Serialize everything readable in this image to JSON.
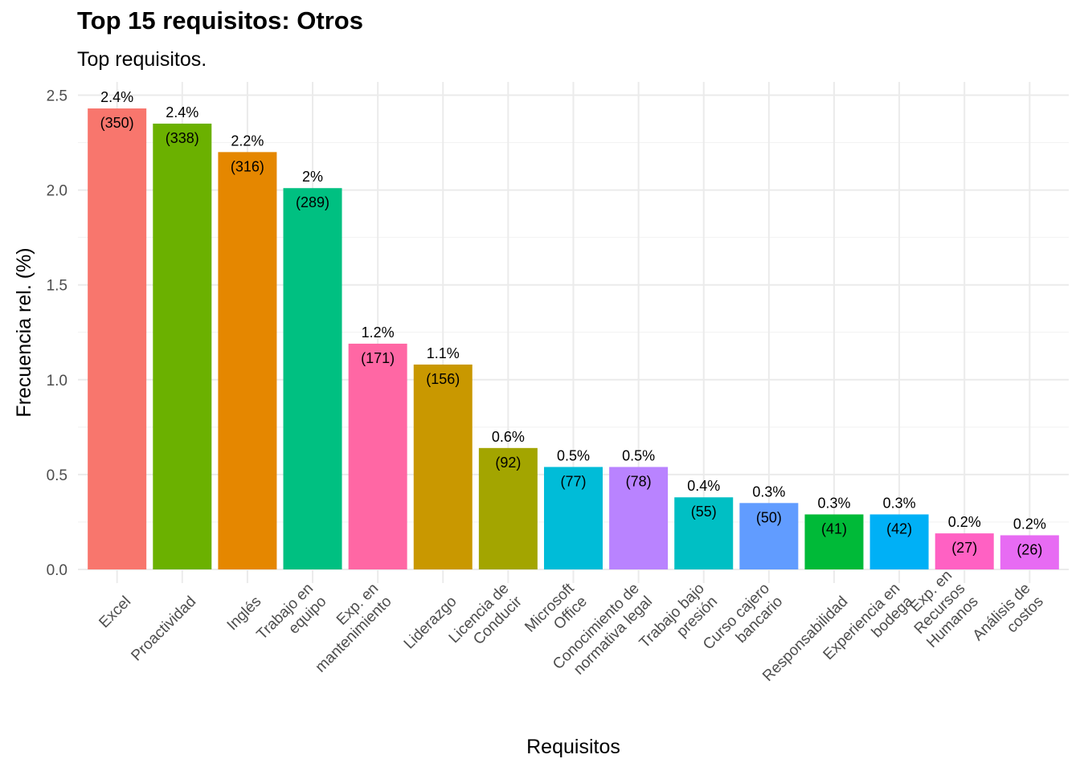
{
  "chart_data": {
    "type": "bar",
    "title": "Top 15 requisitos: Otros",
    "subtitle": "Top requisitos.",
    "xlabel": "Requisitos",
    "ylabel": "Frecuencia rel. (%)",
    "ylim": [
      0,
      2.5
    ],
    "yticks": [
      "0.0",
      "0.5",
      "1.0",
      "1.5",
      "2.0",
      "2.5"
    ],
    "grid": true,
    "legend": "none",
    "categories": [
      [
        "Excel"
      ],
      [
        "Proactividad"
      ],
      [
        "Inglés"
      ],
      [
        "Trabajo en",
        "equipo"
      ],
      [
        "Exp. en",
        "mantenimiento"
      ],
      [
        "Liderazgo"
      ],
      [
        "Licencia de",
        "Conducir"
      ],
      [
        "Microsoft",
        "Office"
      ],
      [
        "Conocimiento de",
        "normativa legal"
      ],
      [
        "Trabajo bajo",
        "presión"
      ],
      [
        "Curso cajero",
        "bancario"
      ],
      [
        "Responsabilidad"
      ],
      [
        "Experiencia en",
        "bodega"
      ],
      [
        "Exp. en",
        "Recursos",
        "Humanos"
      ],
      [
        "Análisis de",
        "costos"
      ]
    ],
    "values": [
      2.43,
      2.35,
      2.2,
      2.01,
      1.19,
      1.08,
      0.64,
      0.54,
      0.54,
      0.38,
      0.35,
      0.29,
      0.29,
      0.19,
      0.18
    ],
    "pct_labels": [
      "2.4%",
      "2.4%",
      "2.2%",
      "2%",
      "1.2%",
      "1.1%",
      "0.6%",
      "0.5%",
      "0.5%",
      "0.4%",
      "0.3%",
      "0.3%",
      "0.3%",
      "0.2%",
      "0.2%"
    ],
    "count_labels": [
      "(350)",
      "(338)",
      "(316)",
      "(289)",
      "(171)",
      "(156)",
      "(92)",
      "(77)",
      "(78)",
      "(55)",
      "(50)",
      "(41)",
      "(42)",
      "(27)",
      "(26)"
    ],
    "colors": [
      "#F8766D",
      "#6BB100",
      "#E58700",
      "#00C081",
      "#FF67A4",
      "#C99800",
      "#A3A500",
      "#00BCD8",
      "#B983FF",
      "#00BFC4",
      "#619CFF",
      "#00BA38",
      "#00B0F6",
      "#FF61C3",
      "#E76BF3"
    ]
  }
}
